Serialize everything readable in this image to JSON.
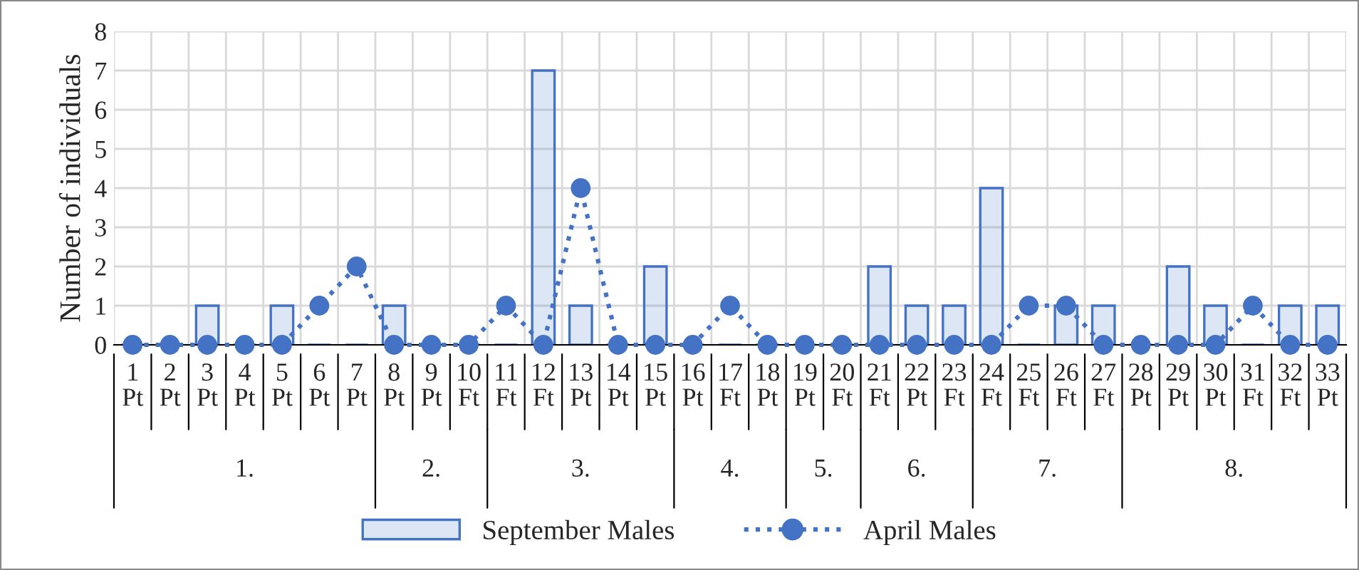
{
  "chart_data": {
    "type": "bar",
    "ylabel": "Number of individuals",
    "categories": [
      "1\nPt",
      "2\nPt",
      "3\nPt",
      "4\nPt",
      "5\nPt",
      "6\nPt",
      "7\nPt",
      "8\nPt",
      "9\nPt",
      "10\nFt",
      "11\nFt",
      "12\nFt",
      "13\nPt",
      "14\nPt",
      "15\nPt",
      "16\nPt",
      "17\nFt",
      "18\nPt",
      "19\nPt",
      "20\nFt",
      "21\nFt",
      "22\nPt",
      "23\nFt",
      "24\nFt",
      "25\nFt",
      "26\nFt",
      "27\nFt",
      "28\nPt",
      "29\nPt",
      "30\nPt",
      "31\nFt",
      "32\nFt",
      "33\nPt"
    ],
    "series": [
      {
        "name": "September Males",
        "color": "#4472c4",
        "values": [
          0,
          0,
          1,
          0,
          1,
          0,
          0,
          1,
          0,
          0,
          0,
          7,
          1,
          0,
          2,
          0,
          0,
          0,
          0,
          0,
          2,
          1,
          1,
          4,
          0,
          1,
          1,
          0,
          2,
          1,
          0,
          1,
          1
        ]
      },
      {
        "name": "April Males",
        "type": "line",
        "color": "#4472c4",
        "marker": "circle",
        "line_style": "dotted",
        "values": [
          0,
          0,
          0,
          0,
          0,
          1,
          2,
          0,
          0,
          0,
          1,
          0,
          4,
          0,
          0,
          0,
          1,
          0,
          0,
          0,
          0,
          0,
          0,
          0,
          1,
          1,
          0,
          0,
          0,
          0,
          1,
          0,
          0
        ]
      }
    ],
    "ylim": [
      0,
      8
    ],
    "yticks": [
      0,
      1,
      2,
      3,
      4,
      5,
      6,
      7,
      8
    ],
    "grid": true,
    "legend": "bottom",
    "annotations": [
      "1.",
      "2.",
      "3.",
      "4.",
      "5.",
      "6.",
      "7.",
      "8."
    ]
  }
}
